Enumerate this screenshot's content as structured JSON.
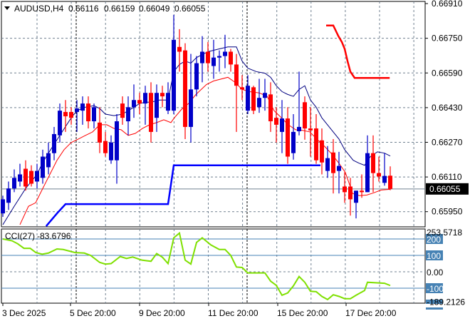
{
  "header": {
    "dropdown_icon": "triangle-down-icon",
    "symbol": "AUDUSD,H4",
    "open": "0.66116",
    "high": "0.66159",
    "low": "0.66049",
    "close": "0.66055"
  },
  "colors": {
    "bull": "#0000c8",
    "bear": "#ff0000",
    "ma_fast": "#000080",
    "ma_slow": "#ff0000",
    "step_blue": "#0000ff",
    "step_red": "#ff0000",
    "cci": "#7fe000",
    "grid": "#708090",
    "level_box": "#4682b4",
    "price_box": "#000000"
  },
  "chart_data": [
    {
      "type": "candlestick",
      "title": "AUDUSD,H4",
      "ylim": [
        0.6588,
        0.6692
      ],
      "grid": true,
      "y_ticks": [
        "0.66910",
        "0.66750",
        "0.66590",
        "0.66430",
        "0.66270",
        "0.66110",
        "0.65950"
      ],
      "x_ticks": [
        "3 Dec 2025",
        "5 Dec 20:00",
        "9 Dec 20:00",
        "11 Dec 20:00",
        "15 Dec 20:00",
        "17 Dec 20:00"
      ],
      "current_price": "0.66055",
      "candles_ohlc": [
        [
          0.65942,
          0.66024,
          0.65926,
          0.66007
        ],
        [
          0.65991,
          0.66089,
          0.65958,
          0.66057
        ],
        [
          0.66057,
          0.66145,
          0.6604,
          0.66106
        ],
        [
          0.66089,
          0.66171,
          0.66066,
          0.66122
        ],
        [
          0.66148,
          0.66187,
          0.66047,
          0.66066
        ],
        [
          0.66138,
          0.66164,
          0.66066,
          0.66079
        ],
        [
          0.66089,
          0.66171,
          0.66057,
          0.66138
        ],
        [
          0.66106,
          0.66236,
          0.66079,
          0.66204
        ],
        [
          0.66155,
          0.66269,
          0.66122,
          0.6622
        ],
        [
          0.6622,
          0.66341,
          0.66187,
          0.66308
        ],
        [
          0.66302,
          0.66449,
          0.66269,
          0.66416
        ],
        [
          0.6641,
          0.66465,
          0.66318,
          0.6639
        ],
        [
          0.6641,
          0.66432,
          0.66351,
          0.66383
        ],
        [
          0.6641,
          0.66465,
          0.66318,
          0.66426
        ],
        [
          0.66416,
          0.66482,
          0.66351,
          0.66449
        ],
        [
          0.66449,
          0.66482,
          0.66334,
          0.66367
        ],
        [
          0.66367,
          0.66449,
          0.66334,
          0.66432
        ],
        [
          0.66361,
          0.66432,
          0.6622,
          0.66269
        ],
        [
          0.66276,
          0.66318,
          0.66204,
          0.6622
        ],
        [
          0.66187,
          0.66302,
          0.66171,
          0.66269
        ],
        [
          0.66187,
          0.664,
          0.66079,
          0.66367
        ],
        [
          0.66449,
          0.66482,
          0.66351,
          0.66383
        ],
        [
          0.66367,
          0.66482,
          0.66302,
          0.66432
        ],
        [
          0.66432,
          0.66537,
          0.66383,
          0.66465
        ],
        [
          0.66465,
          0.66498,
          0.664,
          0.66449
        ],
        [
          0.66449,
          0.66531,
          0.66351,
          0.66498
        ],
        [
          0.66498,
          0.66547,
          0.66269,
          0.66318
        ],
        [
          0.66383,
          0.66537,
          0.66318,
          0.66498
        ],
        [
          0.66498,
          0.66531,
          0.66432,
          0.66482
        ],
        [
          0.66416,
          0.66547,
          0.664,
          0.66498
        ],
        [
          0.66416,
          0.66858,
          0.664,
          0.66743
        ],
        [
          0.6671,
          0.66792,
          0.66596,
          0.66688
        ],
        [
          0.66694,
          0.66727,
          0.66285,
          0.66341
        ],
        [
          0.66341,
          0.66678,
          0.66269,
          0.66514
        ],
        [
          0.66514,
          0.66668,
          0.66482,
          0.66635
        ],
        [
          0.66635,
          0.6676,
          0.66547,
          0.66688
        ],
        [
          0.66688,
          0.66733,
          0.66596,
          0.66635
        ],
        [
          0.66622,
          0.66743,
          0.66563,
          0.66661
        ],
        [
          0.66661,
          0.66694,
          0.66596,
          0.66668
        ],
        [
          0.66668,
          0.66766,
          0.66612,
          0.66688
        ],
        [
          0.66688,
          0.66701,
          0.66596,
          0.66629
        ],
        [
          0.66629,
          0.66678,
          0.66318,
          0.66531
        ],
        [
          0.66524,
          0.6658,
          0.66465,
          0.66514
        ],
        [
          0.66416,
          0.6658,
          0.664,
          0.66531
        ],
        [
          0.66524,
          0.66531,
          0.664,
          0.66416
        ],
        [
          0.66432,
          0.66563,
          0.66406,
          0.66475
        ],
        [
          0.66475,
          0.66563,
          0.66416,
          0.66498
        ],
        [
          0.66491,
          0.66547,
          0.66318,
          0.66367
        ],
        [
          0.66383,
          0.66432,
          0.66269,
          0.66351
        ],
        [
          0.66318,
          0.66465,
          0.6622,
          0.6638
        ],
        [
          0.6638,
          0.66432,
          0.66171,
          0.66204
        ],
        [
          0.6622,
          0.664,
          0.6619,
          0.66318
        ],
        [
          0.66321,
          0.66596,
          0.66302,
          0.66341
        ],
        [
          0.66455,
          0.66482,
          0.66282,
          0.66334
        ],
        [
          0.66334,
          0.66432,
          0.66204,
          0.66325
        ],
        [
          0.66334,
          0.664,
          0.66171,
          0.66187
        ],
        [
          0.66279,
          0.66334,
          0.66122,
          0.66177
        ],
        [
          0.66138,
          0.66253,
          0.66106,
          0.66197
        ],
        [
          0.66223,
          0.66285,
          0.66034,
          0.66128
        ],
        [
          0.66138,
          0.66226,
          0.66034,
          0.66161
        ],
        [
          0.66066,
          0.66132,
          0.65991,
          0.6604
        ],
        [
          0.66066,
          0.66106,
          0.65932,
          0.66007
        ],
        [
          0.65991,
          0.66047,
          0.65919,
          0.66047
        ],
        [
          0.66047,
          0.66122,
          0.66014,
          0.6604
        ],
        [
          0.6604,
          0.66302,
          0.6604,
          0.6622
        ],
        [
          0.6622,
          0.66302,
          0.6604,
          0.66128
        ],
        [
          0.66128,
          0.66204,
          0.66089,
          0.66112
        ],
        [
          0.66083,
          0.6622,
          0.6607,
          0.66115
        ],
        [
          0.66116,
          0.66159,
          0.66049,
          0.66055
        ]
      ],
      "overlays": [
        {
          "kind": "ma-fast",
          "points": [
            [
              0,
              0.6589
            ],
            [
              2,
              0.65975
            ],
            [
              4,
              0.66057
            ],
            [
              6,
              0.66122
            ],
            [
              7,
              0.66177
            ],
            [
              8,
              0.6622
            ],
            [
              10,
              0.66302
            ],
            [
              12,
              0.66383
            ],
            [
              13,
              0.66416
            ],
            [
              14.5,
              0.66432
            ],
            [
              16,
              0.66439
            ],
            [
              17,
              0.66426
            ],
            [
              18,
              0.664
            ],
            [
              19.5,
              0.66393
            ],
            [
              21,
              0.664
            ],
            [
              22,
              0.66416
            ],
            [
              23,
              0.66432
            ],
            [
              24,
              0.66449
            ],
            [
              25,
              0.66455
            ],
            [
              26,
              0.66455
            ],
            [
              27.5,
              0.66465
            ],
            [
              29,
              0.66465
            ],
            [
              30,
              0.66596
            ],
            [
              31,
              0.66629
            ],
            [
              32,
              0.66645
            ],
            [
              33,
              0.66635
            ],
            [
              34,
              0.66661
            ],
            [
              36,
              0.66688
            ],
            [
              38,
              0.66701
            ],
            [
              39.5,
              0.6671
            ],
            [
              41,
              0.6671
            ],
            [
              42,
              0.66645
            ],
            [
              43,
              0.66612
            ],
            [
              44.5,
              0.66596
            ],
            [
              46,
              0.66589
            ],
            [
              47,
              0.6657
            ],
            [
              48,
              0.66531
            ],
            [
              49,
              0.66504
            ],
            [
              50,
              0.66491
            ],
            [
              51,
              0.66482
            ],
            [
              52,
              0.66514
            ],
            [
              53,
              0.66531
            ],
            [
              54,
              0.66465
            ],
            [
              55,
              0.66432
            ],
            [
              56,
              0.66383
            ],
            [
              57.5,
              0.66334
            ],
            [
              59,
              0.66285
            ],
            [
              60,
              0.66236
            ],
            [
              61.5,
              0.66187
            ],
            [
              62.5,
              0.66174
            ],
            [
              63.5,
              0.66164
            ],
            [
              64.5,
              0.66204
            ],
            [
              65.75,
              0.66226
            ],
            [
              67,
              0.6622
            ],
            [
              68,
              0.66207
            ]
          ]
        },
        {
          "kind": "ma-slow",
          "points": [
            [
              3,
              0.6589
            ],
            [
              4.5,
              0.65975
            ],
            [
              5.75,
              0.65991
            ],
            [
              7,
              0.66057
            ],
            [
              8.25,
              0.66122
            ],
            [
              9.5,
              0.66187
            ],
            [
              10.75,
              0.66236
            ],
            [
              12,
              0.66269
            ],
            [
              13.25,
              0.66285
            ],
            [
              14.5,
              0.66302
            ],
            [
              15.75,
              0.66318
            ],
            [
              17,
              0.66351
            ],
            [
              18.25,
              0.66351
            ],
            [
              19.5,
              0.66334
            ],
            [
              20.75,
              0.66328
            ],
            [
              22,
              0.66302
            ],
            [
              23.25,
              0.66311
            ],
            [
              24.5,
              0.66334
            ],
            [
              25.75,
              0.66351
            ],
            [
              27,
              0.66361
            ],
            [
              28.25,
              0.66374
            ],
            [
              29.5,
              0.66361
            ],
            [
              30.1,
              0.66383
            ],
            [
              31.4,
              0.66423
            ],
            [
              32.6,
              0.66449
            ],
            [
              33.9,
              0.66491
            ],
            [
              35.75,
              0.66537
            ],
            [
              37,
              0.66553
            ],
            [
              39.5,
              0.6657
            ],
            [
              40.75,
              0.66547
            ],
            [
              42,
              0.66514
            ],
            [
              43.25,
              0.66504
            ],
            [
              45,
              0.66498
            ],
            [
              46.4,
              0.66482
            ],
            [
              47.6,
              0.66416
            ],
            [
              48.9,
              0.66383
            ],
            [
              50.1,
              0.66351
            ],
            [
              51.4,
              0.66328
            ],
            [
              52.6,
              0.66325
            ],
            [
              53.9,
              0.66318
            ],
            [
              55.1,
              0.66285
            ],
            [
              56.4,
              0.66253
            ],
            [
              57.6,
              0.6622
            ],
            [
              58.9,
              0.66177
            ],
            [
              60.1,
              0.66132
            ],
            [
              61.4,
              0.66034
            ],
            [
              62.6,
              0.66024
            ],
            [
              63.9,
              0.66027
            ],
            [
              65.1,
              0.66037
            ],
            [
              66.4,
              0.6605
            ],
            [
              68,
              0.66053
            ]
          ]
        },
        {
          "kind": "step-blue",
          "points": [
            [
              7.6,
              0.65883
            ],
            [
              9.5,
              0.65942
            ],
            [
              11,
              0.65985
            ],
            [
              29,
              0.65985
            ],
            [
              30,
              0.66164
            ],
            [
              55.75,
              0.66164
            ]
          ]
        },
        {
          "kind": "step-red",
          "points": [
            [
              56.75,
              0.66809
            ],
            [
              58,
              0.66809
            ],
            [
              58.9,
              0.6676
            ],
            [
              59.5,
              0.66733
            ],
            [
              60,
              0.66701
            ],
            [
              60.5,
              0.66645
            ],
            [
              61,
              0.66596
            ],
            [
              61.75,
              0.66567
            ],
            [
              67.9,
              0.66567
            ]
          ]
        }
      ]
    },
    {
      "type": "line",
      "title": "CCI(27)",
      "value_label": "-83.6796",
      "ylim": [
        -189.2126,
        253.5718
      ],
      "max_label": "253.5718",
      "min_label": "-189.2126",
      "levels": [
        "200",
        "100",
        "0.00",
        "-100",
        "-200"
      ],
      "points": [
        [
          0,
          200
        ],
        [
          1.6,
          189
        ],
        [
          2.6,
          171
        ],
        [
          3.7,
          143
        ],
        [
          4.8,
          143
        ],
        [
          5.8,
          117
        ],
        [
          6.9,
          107
        ],
        [
          8,
          114
        ],
        [
          9.5,
          139
        ],
        [
          10.6,
          136
        ],
        [
          12.7,
          117
        ],
        [
          14.3,
          114
        ],
        [
          15.4,
          100
        ],
        [
          17,
          57
        ],
        [
          18,
          47
        ],
        [
          19,
          50
        ],
        [
          20.6,
          93
        ],
        [
          21.7,
          81
        ],
        [
          22.8,
          90
        ],
        [
          24.4,
          71
        ],
        [
          26,
          64
        ],
        [
          27,
          111
        ],
        [
          28,
          89
        ],
        [
          29,
          50
        ],
        [
          30,
          207
        ],
        [
          31,
          236
        ],
        [
          32,
          71
        ],
        [
          33,
          47
        ],
        [
          34,
          179
        ],
        [
          35,
          207
        ],
        [
          36.5,
          164
        ],
        [
          38,
          136
        ],
        [
          39,
          136
        ],
        [
          40,
          100
        ],
        [
          41,
          29
        ],
        [
          42,
          26
        ],
        [
          43,
          -7
        ],
        [
          46,
          -7
        ],
        [
          47,
          -57
        ],
        [
          48,
          -83
        ],
        [
          49,
          -143
        ],
        [
          50,
          -129
        ],
        [
          51,
          -86
        ],
        [
          52,
          -29
        ],
        [
          53,
          -64
        ],
        [
          54,
          -119
        ],
        [
          55,
          -121
        ],
        [
          56,
          -150
        ],
        [
          57,
          -169
        ],
        [
          58,
          -140
        ],
        [
          59,
          -150
        ],
        [
          60,
          -164
        ],
        [
          61,
          -164
        ],
        [
          62,
          -143
        ],
        [
          63.5,
          -114
        ],
        [
          64,
          -64
        ],
        [
          67,
          -70
        ],
        [
          68,
          -83.6796
        ]
      ]
    }
  ]
}
